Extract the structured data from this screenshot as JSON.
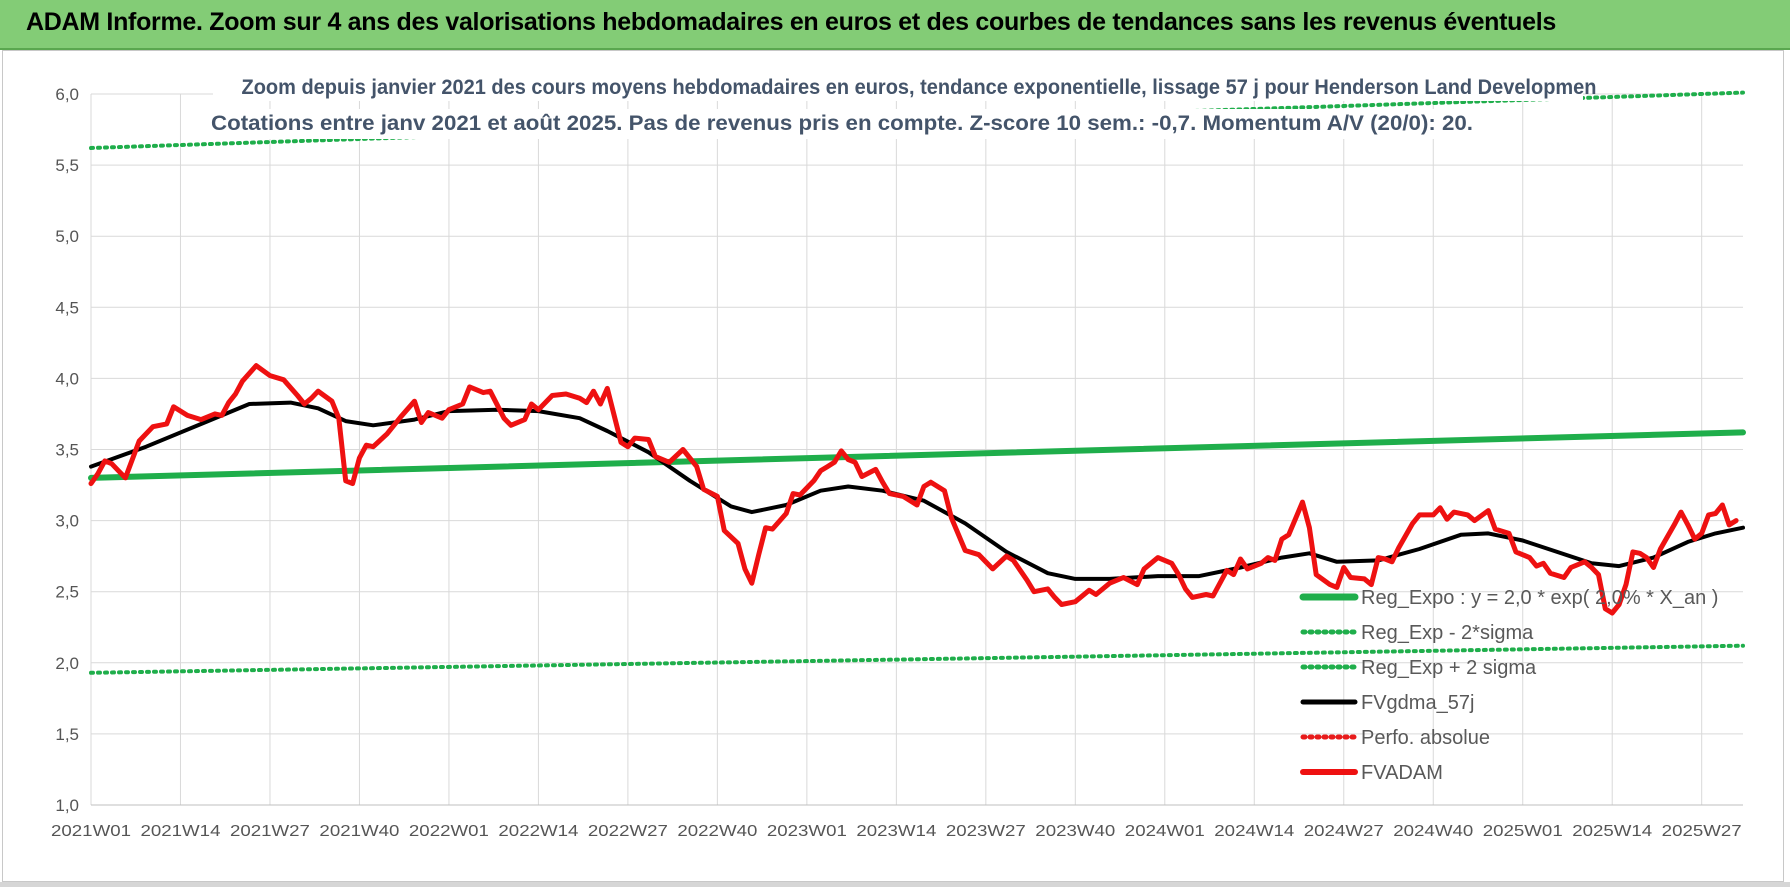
{
  "page_title": "ADAM Informe. Zoom sur 4 ans des valorisations hebdomadaires en euros et des courbes de tendances sans les revenus éventuels",
  "colors": {
    "banner": "#83cc76",
    "reg_expo": "#1fae4b",
    "fvgdma": "#000000",
    "perfo": "#e81b1b",
    "fvadam": "#ee1111",
    "grid": "#d9d9d9"
  },
  "chart_data": {
    "type": "line",
    "title_line1": "Zoom depuis janvier 2021 des cours moyens hebdomadaires en euros, tendance exponentielle, lissage 57 j pour Henderson Land Developmen",
    "title_line2": "Cotations entre janv 2021 et août 2025. Pas de revenus pris en compte. Z-score 10 sem.: -0,7. Momentum A/V (20/0): 20.",
    "ylim": [
      1.0,
      6.0
    ],
    "y_ticks": [
      "1,0",
      "1,5",
      "2,0",
      "2,5",
      "3,0",
      "3,5",
      "4,0",
      "4,5",
      "5,0",
      "5,5",
      "6,0"
    ],
    "x_ticks": [
      "2021W01",
      "2021W14",
      "2021W27",
      "2021W40",
      "2022W01",
      "2022W14",
      "2022W27",
      "2022W40",
      "2023W01",
      "2023W14",
      "2023W27",
      "2023W40",
      "2024W01",
      "2024W14",
      "2024W27",
      "2024W40",
      "2025W01",
      "2025W14",
      "2025W27"
    ],
    "grid": true,
    "legend_position": "bottom-right",
    "series": [
      {
        "name": "Reg_Expo : y = 2,0 * exp( 2,0% * X_an )",
        "style": "solid-green",
        "points": [
          [
            "2021W01",
            3.3
          ],
          [
            "2025W33",
            3.62
          ]
        ]
      },
      {
        "name": "Reg_Exp - 2*sigma",
        "style": "dotted-green",
        "points": [
          [
            "2021W01",
            1.93
          ],
          [
            "2025W33",
            2.12
          ]
        ]
      },
      {
        "name": "Reg_Exp + 2 sigma",
        "style": "dotted-green",
        "points": [
          [
            "2021W01",
            5.62
          ],
          [
            "2025W33",
            6.01
          ]
        ]
      },
      {
        "name": "FVgdma_57j",
        "style": "solid-black",
        "points": [
          [
            "2021W01",
            3.38
          ],
          [
            "2021W09",
            3.52
          ],
          [
            "2021W18",
            3.7
          ],
          [
            "2021W24",
            3.82
          ],
          [
            "2021W30",
            3.83
          ],
          [
            "2021W34",
            3.79
          ],
          [
            "2021W38",
            3.7
          ],
          [
            "2021W42",
            3.67
          ],
          [
            "2021W48",
            3.71
          ],
          [
            "2022W01",
            3.77
          ],
          [
            "2022W08",
            3.78
          ],
          [
            "2022W14",
            3.77
          ],
          [
            "2022W20",
            3.72
          ],
          [
            "2022W24",
            3.63
          ],
          [
            "2022W30",
            3.48
          ],
          [
            "2022W36",
            3.28
          ],
          [
            "2022W42",
            3.1
          ],
          [
            "2022W45",
            3.06
          ],
          [
            "2022W50",
            3.11
          ],
          [
            "2023W03",
            3.21
          ],
          [
            "2023W07",
            3.24
          ],
          [
            "2023W12",
            3.21
          ],
          [
            "2023W18",
            3.14
          ],
          [
            "2023W24",
            2.98
          ],
          [
            "2023W30",
            2.78
          ],
          [
            "2023W36",
            2.63
          ],
          [
            "2023W40",
            2.59
          ],
          [
            "2023W45",
            2.59
          ],
          [
            "2023W52",
            2.61
          ],
          [
            "2024W06",
            2.61
          ],
          [
            "2024W12",
            2.67
          ],
          [
            "2024W18",
            2.74
          ],
          [
            "2024W22",
            2.77
          ],
          [
            "2024W26",
            2.71
          ],
          [
            "2024W32",
            2.72
          ],
          [
            "2024W38",
            2.8
          ],
          [
            "2024W44",
            2.9
          ],
          [
            "2024W48",
            2.91
          ],
          [
            "2025W01",
            2.86
          ],
          [
            "2025W06",
            2.78
          ],
          [
            "2025W11",
            2.7
          ],
          [
            "2025W15",
            2.68
          ],
          [
            "2025W20",
            2.74
          ],
          [
            "2025W25",
            2.85
          ],
          [
            "2025W29",
            2.91
          ],
          [
            "2025W33",
            2.95
          ]
        ]
      },
      {
        "name": "Perfo. absolue",
        "style": "dotted-red",
        "points": []
      },
      {
        "name": "FVADAM",
        "style": "solid-red",
        "points": [
          [
            "2021W01",
            3.26
          ],
          [
            "2021W02",
            3.33
          ],
          [
            "2021W03",
            3.42
          ],
          [
            "2021W04",
            3.4
          ],
          [
            "2021W05",
            3.35
          ],
          [
            "2021W06",
            3.3
          ],
          [
            "2021W08",
            3.56
          ],
          [
            "2021W10",
            3.66
          ],
          [
            "2021W12",
            3.68
          ],
          [
            "2021W13",
            3.8
          ],
          [
            "2021W15",
            3.74
          ],
          [
            "2021W17",
            3.71
          ],
          [
            "2021W19",
            3.75
          ],
          [
            "2021W20",
            3.74
          ],
          [
            "2021W21",
            3.83
          ],
          [
            "2021W22",
            3.89
          ],
          [
            "2021W23",
            3.98
          ],
          [
            "2021W25",
            4.09
          ],
          [
            "2021W27",
            4.02
          ],
          [
            "2021W29",
            3.99
          ],
          [
            "2021W31",
            3.88
          ],
          [
            "2021W32",
            3.82
          ],
          [
            "2021W33",
            3.86
          ],
          [
            "2021W34",
            3.91
          ],
          [
            "2021W36",
            3.84
          ],
          [
            "2021W37",
            3.72
          ],
          [
            "2021W38",
            3.28
          ],
          [
            "2021W39",
            3.26
          ],
          [
            "2021W40",
            3.44
          ],
          [
            "2021W41",
            3.53
          ],
          [
            "2021W42",
            3.52
          ],
          [
            "2021W44",
            3.61
          ],
          [
            "2021W46",
            3.73
          ],
          [
            "2021W48",
            3.84
          ],
          [
            "2021W49",
            3.69
          ],
          [
            "2021W50",
            3.76
          ],
          [
            "2021W52",
            3.72
          ],
          [
            "2022W01",
            3.78
          ],
          [
            "2022W03",
            3.82
          ],
          [
            "2022W04",
            3.94
          ],
          [
            "2022W06",
            3.9
          ],
          [
            "2022W07",
            3.91
          ],
          [
            "2022W09",
            3.72
          ],
          [
            "2022W10",
            3.67
          ],
          [
            "2022W12",
            3.71
          ],
          [
            "2022W13",
            3.82
          ],
          [
            "2022W14",
            3.78
          ],
          [
            "2022W16",
            3.88
          ],
          [
            "2022W18",
            3.89
          ],
          [
            "2022W20",
            3.86
          ],
          [
            "2022W21",
            3.83
          ],
          [
            "2022W22",
            3.91
          ],
          [
            "2022W23",
            3.82
          ],
          [
            "2022W24",
            3.93
          ],
          [
            "2022W26",
            3.55
          ],
          [
            "2022W27",
            3.52
          ],
          [
            "2022W28",
            3.58
          ],
          [
            "2022W30",
            3.57
          ],
          [
            "2022W31",
            3.45
          ],
          [
            "2022W33",
            3.41
          ],
          [
            "2022W35",
            3.5
          ],
          [
            "2022W37",
            3.38
          ],
          [
            "2022W38",
            3.22
          ],
          [
            "2022W40",
            3.17
          ],
          [
            "2022W41",
            2.93
          ],
          [
            "2022W43",
            2.84
          ],
          [
            "2022W44",
            2.66
          ],
          [
            "2022W45",
            2.56
          ],
          [
            "2022W46",
            2.76
          ],
          [
            "2022W47",
            2.95
          ],
          [
            "2022W48",
            2.94
          ],
          [
            "2022W50",
            3.05
          ],
          [
            "2022W51",
            3.19
          ],
          [
            "2022W52",
            3.18
          ],
          [
            "2023W02",
            3.28
          ],
          [
            "2023W03",
            3.35
          ],
          [
            "2023W04",
            3.38
          ],
          [
            "2023W05",
            3.41
          ],
          [
            "2023W06",
            3.49
          ],
          [
            "2023W07",
            3.43
          ],
          [
            "2023W08",
            3.41
          ],
          [
            "2023W09",
            3.31
          ],
          [
            "2023W11",
            3.36
          ],
          [
            "2023W12",
            3.27
          ],
          [
            "2023W13",
            3.19
          ],
          [
            "2023W15",
            3.17
          ],
          [
            "2023W17",
            3.11
          ],
          [
            "2023W18",
            3.24
          ],
          [
            "2023W19",
            3.27
          ],
          [
            "2023W21",
            3.21
          ],
          [
            "2023W22",
            3.02
          ],
          [
            "2023W24",
            2.79
          ],
          [
            "2023W26",
            2.76
          ],
          [
            "2023W28",
            2.66
          ],
          [
            "2023W30",
            2.75
          ],
          [
            "2023W31",
            2.72
          ],
          [
            "2023W33",
            2.58
          ],
          [
            "2023W34",
            2.5
          ],
          [
            "2023W36",
            2.52
          ],
          [
            "2023W37",
            2.46
          ],
          [
            "2023W38",
            2.41
          ],
          [
            "2023W40",
            2.43
          ],
          [
            "2023W42",
            2.51
          ],
          [
            "2023W43",
            2.48
          ],
          [
            "2023W45",
            2.56
          ],
          [
            "2023W47",
            2.6
          ],
          [
            "2023W49",
            2.55
          ],
          [
            "2023W50",
            2.66
          ],
          [
            "2023W52",
            2.74
          ],
          [
            "2024W02",
            2.7
          ],
          [
            "2024W03",
            2.62
          ],
          [
            "2024W04",
            2.52
          ],
          [
            "2024W05",
            2.46
          ],
          [
            "2024W07",
            2.48
          ],
          [
            "2024W08",
            2.47
          ],
          [
            "2024W10",
            2.65
          ],
          [
            "2024W11",
            2.62
          ],
          [
            "2024W12",
            2.73
          ],
          [
            "2024W13",
            2.66
          ],
          [
            "2024W15",
            2.7
          ],
          [
            "2024W16",
            2.74
          ],
          [
            "2024W17",
            2.72
          ],
          [
            "2024W18",
            2.87
          ],
          [
            "2024W19",
            2.9
          ],
          [
            "2024W21",
            3.13
          ],
          [
            "2024W22",
            2.95
          ],
          [
            "2024W23",
            2.62
          ],
          [
            "2024W25",
            2.55
          ],
          [
            "2024W26",
            2.53
          ],
          [
            "2024W27",
            2.67
          ],
          [
            "2024W28",
            2.6
          ],
          [
            "2024W30",
            2.59
          ],
          [
            "2024W31",
            2.55
          ],
          [
            "2024W32",
            2.74
          ],
          [
            "2024W33",
            2.73
          ],
          [
            "2024W34",
            2.71
          ],
          [
            "2024W35",
            2.81
          ],
          [
            "2024W37",
            2.98
          ],
          [
            "2024W38",
            3.04
          ],
          [
            "2024W40",
            3.04
          ],
          [
            "2024W41",
            3.09
          ],
          [
            "2024W42",
            3.01
          ],
          [
            "2024W43",
            3.06
          ],
          [
            "2024W45",
            3.04
          ],
          [
            "2024W46",
            3.0
          ],
          [
            "2024W48",
            3.07
          ],
          [
            "2024W49",
            2.94
          ],
          [
            "2024W51",
            2.91
          ],
          [
            "2024W52",
            2.78
          ],
          [
            "2025W02",
            2.74
          ],
          [
            "2025W03",
            2.68
          ],
          [
            "2025W04",
            2.7
          ],
          [
            "2025W05",
            2.63
          ],
          [
            "2025W07",
            2.6
          ],
          [
            "2025W08",
            2.67
          ],
          [
            "2025W10",
            2.71
          ],
          [
            "2025W11",
            2.67
          ],
          [
            "2025W12",
            2.62
          ],
          [
            "2025W13",
            2.38
          ],
          [
            "2025W14",
            2.35
          ],
          [
            "2025W15",
            2.41
          ],
          [
            "2025W16",
            2.55
          ],
          [
            "2025W17",
            2.78
          ],
          [
            "2025W18",
            2.77
          ],
          [
            "2025W19",
            2.74
          ],
          [
            "2025W20",
            2.67
          ],
          [
            "2025W21",
            2.8
          ],
          [
            "2025W23",
            2.97
          ],
          [
            "2025W24",
            3.06
          ],
          [
            "2025W25",
            2.97
          ],
          [
            "2025W26",
            2.87
          ],
          [
            "2025W27",
            2.91
          ],
          [
            "2025W28",
            3.04
          ],
          [
            "2025W29",
            3.05
          ],
          [
            "2025W30",
            3.11
          ],
          [
            "2025W31",
            2.97
          ],
          [
            "2025W32",
            3.0
          ]
        ]
      }
    ]
  }
}
